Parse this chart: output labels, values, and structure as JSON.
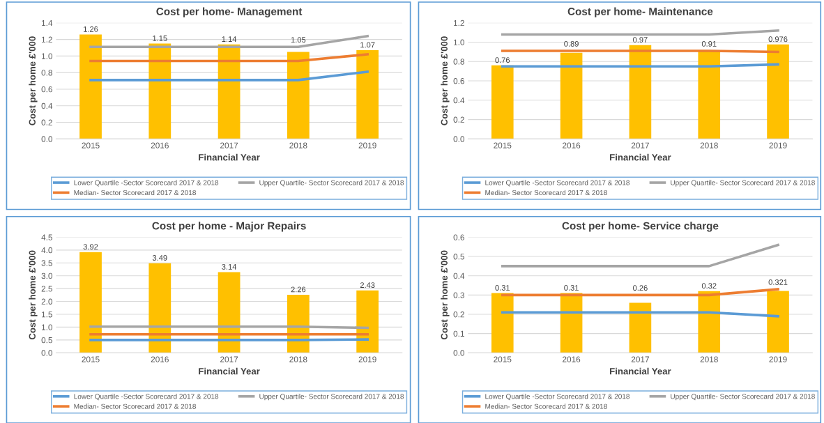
{
  "chart_data": [
    {
      "type": "bar",
      "title": "Cost per home- Management",
      "xlabel": "Financial Year",
      "ylabel": "Cost per home £'000",
      "categories": [
        "2015",
        "2016",
        "2017",
        "2018",
        "2019"
      ],
      "series": [
        {
          "color": "#ffc000",
          "values": [
            1.26,
            1.15,
            1.14,
            1.05,
            1.07
          ],
          "value_labels": [
            "1.26",
            "1.15",
            "1.14",
            "1.05",
            "1.07"
          ]
        },
        {
          "type": "line",
          "name": "Lower Quartile -Sector Scorecard 2017 & 2018",
          "color": "#5b9bd5",
          "values": [
            0.71,
            0.71,
            0.71,
            0.71,
            0.81
          ]
        },
        {
          "type": "line",
          "name": "Median- Sector Scorecard 2017 & 2018",
          "color": "#ed7d31",
          "values": [
            0.94,
            0.94,
            0.94,
            0.94,
            1.02
          ]
        },
        {
          "type": "line",
          "name": "Upper Quartile- Sector Scorecard 2017 & 2018",
          "color": "#a5a5a5",
          "values": [
            1.11,
            1.11,
            1.11,
            1.11,
            1.24
          ]
        }
      ],
      "ylim": [
        0,
        1.4
      ],
      "yticks": [
        {
          "value": 0,
          "label": "0.0"
        },
        {
          "value": 0.2,
          "label": "0.2"
        },
        {
          "value": 0.4,
          "label": "0.4"
        },
        {
          "value": 0.6,
          "label": "0.6"
        },
        {
          "value": 0.8,
          "label": "0.8"
        },
        {
          "value": 1.0,
          "label": "1.0"
        },
        {
          "value": 1.2,
          "label": "1.2"
        },
        {
          "value": 1.4,
          "label": "1.4"
        }
      ],
      "grid": "y",
      "legend": "bottom"
    },
    {
      "type": "bar",
      "title": "Cost per home- Maintenance",
      "xlabel": "Financial Year",
      "ylabel": "Cost per home £'000",
      "categories": [
        "2015",
        "2016",
        "2017",
        "2018",
        "2019"
      ],
      "series": [
        {
          "color": "#ffc000",
          "values": [
            0.76,
            0.89,
            0.97,
            0.91,
            0.976
          ],
          "value_labels": [
            "0.76",
            "0.89",
            "0.97",
            "0.91",
            "0.976"
          ]
        },
        {
          "type": "line",
          "name": "Lower Quartile -Sector Scorecard 2017 & 2018",
          "color": "#5b9bd5",
          "values": [
            0.75,
            0.75,
            0.75,
            0.75,
            0.77
          ]
        },
        {
          "type": "line",
          "name": "Median- Sector Scorecard 2017 & 2018",
          "color": "#ed7d31",
          "values": [
            0.91,
            0.91,
            0.91,
            0.91,
            0.9
          ]
        },
        {
          "type": "line",
          "name": "Upper Quartile- Sector Scorecard 2017 & 2018",
          "color": "#a5a5a5",
          "values": [
            1.08,
            1.08,
            1.08,
            1.08,
            1.12
          ]
        }
      ],
      "ylim": [
        0,
        1.2
      ],
      "yticks": [
        {
          "value": 0,
          "label": "0.0"
        },
        {
          "value": 0.2,
          "label": "0.2"
        },
        {
          "value": 0.4,
          "label": "0.4"
        },
        {
          "value": 0.6,
          "label": "0.6"
        },
        {
          "value": 0.8,
          "label": "0.8"
        },
        {
          "value": 1.0,
          "label": "1.0"
        },
        {
          "value": 1.2,
          "label": "1.2"
        }
      ],
      "grid": "y",
      "legend": "bottom"
    },
    {
      "type": "bar",
      "title": "Cost per home - Major Repairs",
      "xlabel": "Financial Year",
      "ylabel": "Cost per home £'000",
      "categories": [
        "2015",
        "2016",
        "2017",
        "2018",
        "2019"
      ],
      "series": [
        {
          "color": "#ffc000",
          "values": [
            3.92,
            3.49,
            3.14,
            2.26,
            2.43
          ],
          "value_labels": [
            "3.92",
            "3.49",
            "3.14",
            "2.26",
            "2.43"
          ]
        },
        {
          "type": "line",
          "name": "Lower Quartile -Sector Scorecard 2017 & 2018",
          "color": "#5b9bd5",
          "values": [
            0.5,
            0.5,
            0.5,
            0.5,
            0.52
          ]
        },
        {
          "type": "line",
          "name": "Median- Sector Scorecard 2017 & 2018",
          "color": "#ed7d31",
          "values": [
            0.72,
            0.72,
            0.72,
            0.72,
            0.72
          ]
        },
        {
          "type": "line",
          "name": "Upper Quartile- Sector Scorecard 2017 & 2018",
          "color": "#a5a5a5",
          "values": [
            1.02,
            1.02,
            1.02,
            1.02,
            0.97
          ]
        }
      ],
      "ylim": [
        0,
        4.5
      ],
      "yticks": [
        {
          "value": 0,
          "label": "0.0"
        },
        {
          "value": 0.5,
          "label": "0.5"
        },
        {
          "value": 1.0,
          "label": "1.0"
        },
        {
          "value": 1.5,
          "label": "1.5"
        },
        {
          "value": 2.0,
          "label": "2.0"
        },
        {
          "value": 2.5,
          "label": "2.5"
        },
        {
          "value": 3.0,
          "label": "3.0"
        },
        {
          "value": 3.5,
          "label": "3.5"
        },
        {
          "value": 4.0,
          "label": "4.0"
        },
        {
          "value": 4.5,
          "label": "4.5"
        }
      ],
      "grid": "y",
      "legend": "bottom"
    },
    {
      "type": "bar",
      "title": "Cost per home- Service charge",
      "xlabel": "Financial Year",
      "ylabel": "Cost per home £'000",
      "categories": [
        "2015",
        "2016",
        "2017",
        "2018",
        "2019"
      ],
      "series": [
        {
          "color": "#ffc000",
          "values": [
            0.31,
            0.31,
            0.26,
            0.32,
            0.321
          ],
          "value_labels": [
            "0.31",
            "0.31",
            "0.26",
            "0.32",
            "0.321"
          ]
        },
        {
          "type": "line",
          "name": "Lower Quartile -Sector Scorecard 2017 & 2018",
          "color": "#5b9bd5",
          "values": [
            0.21,
            0.21,
            0.21,
            0.21,
            0.19
          ]
        },
        {
          "type": "line",
          "name": "Median- Sector Scorecard 2017 & 2018",
          "color": "#ed7d31",
          "values": [
            0.3,
            0.3,
            0.3,
            0.3,
            0.33
          ]
        },
        {
          "type": "line",
          "name": "Upper Quartile- Sector Scorecard 2017 & 2018",
          "color": "#a5a5a5",
          "values": [
            0.45,
            0.45,
            0.45,
            0.45,
            0.56
          ]
        }
      ],
      "ylim": [
        0,
        0.6
      ],
      "yticks": [
        {
          "value": 0,
          "label": "0.0"
        },
        {
          "value": 0.1,
          "label": "0.1"
        },
        {
          "value": 0.2,
          "label": "0.2"
        },
        {
          "value": 0.3,
          "label": "0.3"
        },
        {
          "value": 0.4,
          "label": "0.4"
        },
        {
          "value": 0.5,
          "label": "0.5"
        },
        {
          "value": 0.6,
          "label": "0.6"
        }
      ],
      "grid": "y",
      "legend": "bottom"
    }
  ]
}
